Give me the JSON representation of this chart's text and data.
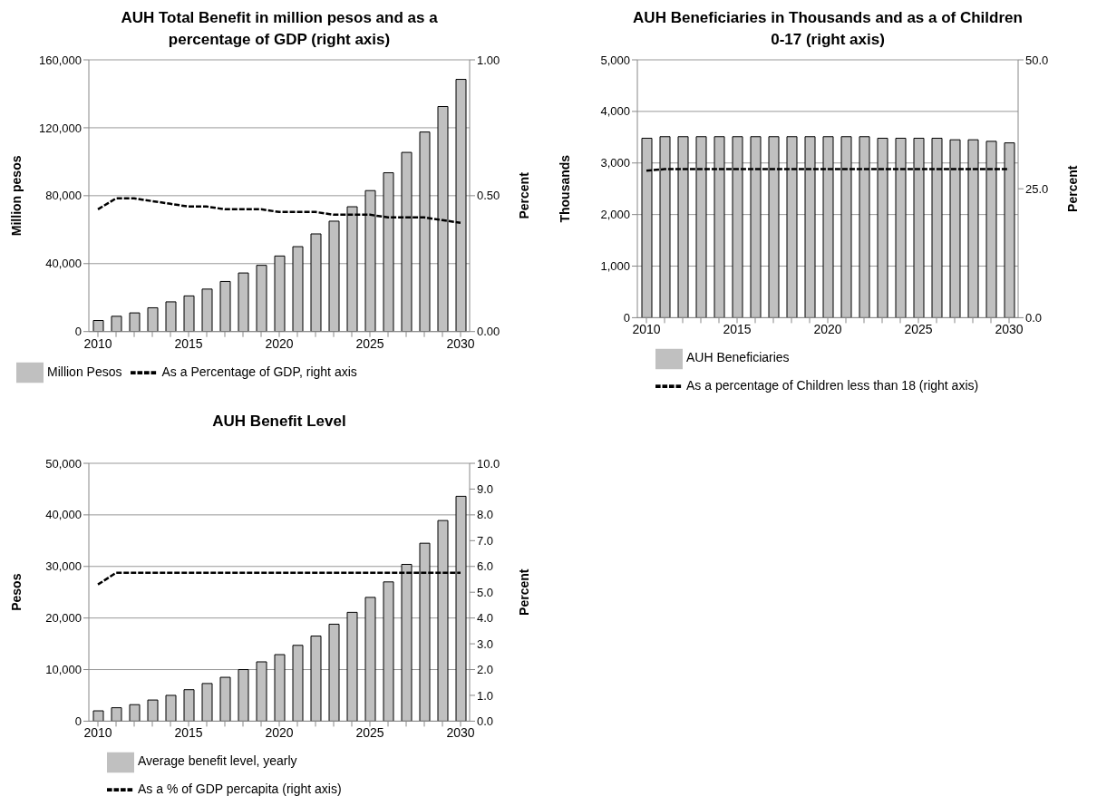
{
  "chart_data": [
    {
      "type": "bar",
      "title": "AUH Total Benefit in million pesos and as a percentage of GDP (right axis)",
      "ylabel": "Million  pesos",
      "y2label": "Percent",
      "categories": [
        "2010",
        null,
        null,
        null,
        null,
        "2015",
        null,
        null,
        null,
        null,
        "2020",
        null,
        null,
        null,
        null,
        "2025",
        null,
        null,
        null,
        null,
        "2030"
      ],
      "series": [
        {
          "name": "Million Pesos",
          "color": "#c0c0c0",
          "values": [
            6500,
            9000,
            11000,
            14000,
            17500,
            21000,
            25000,
            29500,
            34500,
            39000,
            44500,
            50000,
            57500,
            65000,
            73500,
            83000,
            93500,
            105500,
            117500,
            132500,
            148500
          ]
        },
        {
          "name": "As a Percentage of GDP, right axis",
          "type": "line",
          "axis": "y2",
          "color": "#000000",
          "line_style": "dashed",
          "values": [
            0.45,
            0.49,
            0.49,
            0.48,
            0.47,
            0.46,
            0.46,
            0.45,
            0.45,
            0.45,
            0.44,
            0.44,
            0.44,
            0.43,
            0.43,
            0.43,
            0.42,
            0.42,
            0.42,
            0.41,
            0.4
          ]
        }
      ],
      "ylim": [
        0,
        160000
      ],
      "yticks": [
        {
          "value": 0,
          "label": "0"
        },
        {
          "value": 40000,
          "label": "40,000"
        },
        {
          "value": 80000,
          "label": "80,000"
        },
        {
          "value": 120000,
          "label": "120,000"
        },
        {
          "value": 160000,
          "label": "160,000"
        }
      ],
      "y2lim": [
        0,
        1
      ],
      "y2ticks": [
        {
          "value": 0,
          "label": "0.00"
        },
        {
          "value": 0.5,
          "label": "0.50"
        },
        {
          "value": 1,
          "label": "1.00"
        }
      ],
      "grid": "y",
      "legend": "bottom",
      "marker": "none"
    },
    {
      "type": "bar",
      "title": "AUH Beneficiaries in Thousands and as a of Children 0-17 (right axis)",
      "ylabel": "Thousands",
      "y2label": "Percent",
      "categories": [
        "2010",
        null,
        null,
        null,
        null,
        "2015",
        null,
        null,
        null,
        null,
        "2020",
        null,
        null,
        null,
        null,
        "2025",
        null,
        null,
        null,
        null,
        "2030"
      ],
      "series": [
        {
          "name": "AUH Beneficiaries",
          "color": "#c0c0c0",
          "values": [
            3480,
            3510,
            3510,
            3510,
            3510,
            3510,
            3510,
            3510,
            3510,
            3510,
            3510,
            3510,
            3510,
            3480,
            3480,
            3480,
            3480,
            3450,
            3450,
            3420,
            3390
          ]
        },
        {
          "name": "As a percentage of Children less than 18 (right axis)",
          "type": "line",
          "axis": "y2",
          "color": "#000000",
          "line_style": "dashed",
          "values": [
            28.5,
            28.8,
            28.8,
            28.8,
            28.8,
            28.8,
            28.8,
            28.8,
            28.8,
            28.8,
            28.8,
            28.8,
            28.8,
            28.8,
            28.8,
            28.8,
            28.8,
            28.8,
            28.8,
            28.8,
            28.8
          ]
        }
      ],
      "ylim": [
        0,
        5000
      ],
      "yticks": [
        {
          "value": 0,
          "label": "0"
        },
        {
          "value": 1000,
          "label": "1,000"
        },
        {
          "value": 2000,
          "label": "2,000"
        },
        {
          "value": 3000,
          "label": "3,000"
        },
        {
          "value": 4000,
          "label": "4,000"
        },
        {
          "value": 5000,
          "label": "5,000"
        }
      ],
      "y2lim": [
        0,
        50
      ],
      "y2ticks": [
        {
          "value": 0,
          "label": "0.0"
        },
        {
          "value": 25,
          "label": "25.0"
        },
        {
          "value": 50,
          "label": "50.0"
        }
      ],
      "grid": "y",
      "legend": "bottom",
      "marker": "none"
    },
    {
      "type": "bar",
      "title": "AUH Benefit Level",
      "ylabel": "Pesos",
      "y2label": "Percent",
      "categories": [
        "2010",
        null,
        null,
        null,
        null,
        "2015",
        null,
        null,
        null,
        null,
        "2020",
        null,
        null,
        null,
        null,
        "2025",
        null,
        null,
        null,
        null,
        "2030"
      ],
      "series": [
        {
          "name": "Average benefit level, yearly",
          "color": "#c0c0c0",
          "values": [
            2000,
            2600,
            3200,
            4100,
            5000,
            6100,
            7300,
            8500,
            10000,
            11500,
            12900,
            14700,
            16500,
            18800,
            21100,
            24000,
            27000,
            30400,
            34500,
            38900,
            43600
          ]
        },
        {
          "name": "As a % of GDP percapita (right axis)",
          "type": "line",
          "axis": "y2",
          "color": "#000000",
          "line_style": "dashed",
          "values": [
            5.3,
            5.75,
            5.75,
            5.75,
            5.75,
            5.75,
            5.75,
            5.75,
            5.75,
            5.75,
            5.75,
            5.75,
            5.75,
            5.75,
            5.75,
            5.75,
            5.75,
            5.75,
            5.75,
            5.75,
            5.75
          ]
        }
      ],
      "ylim": [
        0,
        50000
      ],
      "yticks": [
        {
          "value": 0,
          "label": "0"
        },
        {
          "value": 10000,
          "label": "10,000"
        },
        {
          "value": 20000,
          "label": "20,000"
        },
        {
          "value": 30000,
          "label": "30,000"
        },
        {
          "value": 40000,
          "label": "40,000"
        },
        {
          "value": 50000,
          "label": "50,000"
        }
      ],
      "y2lim": [
        0,
        10
      ],
      "y2ticks": [
        {
          "value": 0,
          "label": "0.0"
        },
        {
          "value": 1,
          "label": "1.0"
        },
        {
          "value": 2,
          "label": "2.0"
        },
        {
          "value": 3,
          "label": "3.0"
        },
        {
          "value": 4,
          "label": "4.0"
        },
        {
          "value": 5,
          "label": "5.0"
        },
        {
          "value": 6,
          "label": "6.0"
        },
        {
          "value": 7,
          "label": "7.0"
        },
        {
          "value": 8,
          "label": "8.0"
        },
        {
          "value": 9,
          "label": "9.0"
        },
        {
          "value": 10,
          "label": "10.0"
        }
      ],
      "grid": "y",
      "legend": "bottom",
      "marker": "none"
    }
  ]
}
